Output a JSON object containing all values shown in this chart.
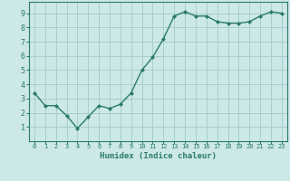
{
  "x": [
    0,
    1,
    2,
    3,
    4,
    5,
    6,
    7,
    8,
    9,
    10,
    11,
    12,
    13,
    14,
    15,
    16,
    17,
    18,
    19,
    20,
    21,
    22,
    23
  ],
  "y": [
    3.4,
    2.5,
    2.5,
    1.8,
    0.9,
    1.7,
    2.5,
    2.3,
    2.6,
    3.4,
    5.0,
    5.9,
    7.2,
    8.8,
    9.1,
    8.8,
    8.8,
    8.4,
    8.3,
    8.3,
    8.4,
    8.8,
    9.1,
    9.0
  ],
  "xlabel": "Humidex (Indice chaleur)",
  "xlim": [
    -0.5,
    23.5
  ],
  "ylim": [
    0.0,
    9.8
  ],
  "yticks": [
    1,
    2,
    3,
    4,
    5,
    6,
    7,
    8,
    9
  ],
  "xticks": [
    0,
    1,
    2,
    3,
    4,
    5,
    6,
    7,
    8,
    9,
    10,
    11,
    12,
    13,
    14,
    15,
    16,
    17,
    18,
    19,
    20,
    21,
    22,
    23
  ],
  "line_color": "#2a7a6a",
  "marker_color": "#2a7a6a",
  "bg_color": "#cce8e8",
  "grid_color": "#a8cece",
  "axis_color": "#2a7a6a",
  "label_color": "#2a7a6a",
  "tick_color": "#2a7a6a",
  "xlabel_fontsize": 6.5,
  "ytick_fontsize": 6.0,
  "xtick_fontsize": 5.0
}
